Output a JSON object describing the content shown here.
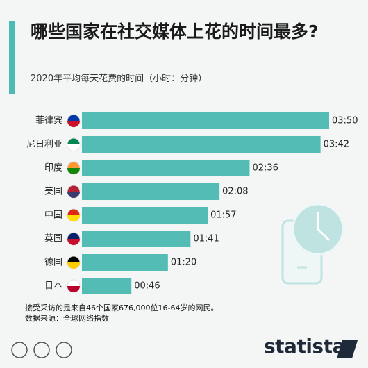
{
  "chart_data": {
    "type": "bar",
    "orientation": "horizontal",
    "title": "哪些国家在社交媒体上花的时间最多?",
    "subtitle": "2020年平均每天花费的时间（小时：分钟）",
    "categories": [
      "菲律宾",
      "尼日利亚",
      "印度",
      "美国",
      "中国",
      "英国",
      "德国",
      "日本"
    ],
    "values": [
      230,
      222,
      156,
      128,
      117,
      101,
      80,
      46
    ],
    "value_labels": [
      "03:50",
      "03:42",
      "02:36",
      "02:08",
      "01:57",
      "01:41",
      "01:20",
      "00:46"
    ],
    "color": "#52bcb5",
    "note": "接受采访的是来自46个国家676,000位16-64岁的网民。",
    "source": "数据来源：全球网络指数",
    "brand": "statista"
  }
}
